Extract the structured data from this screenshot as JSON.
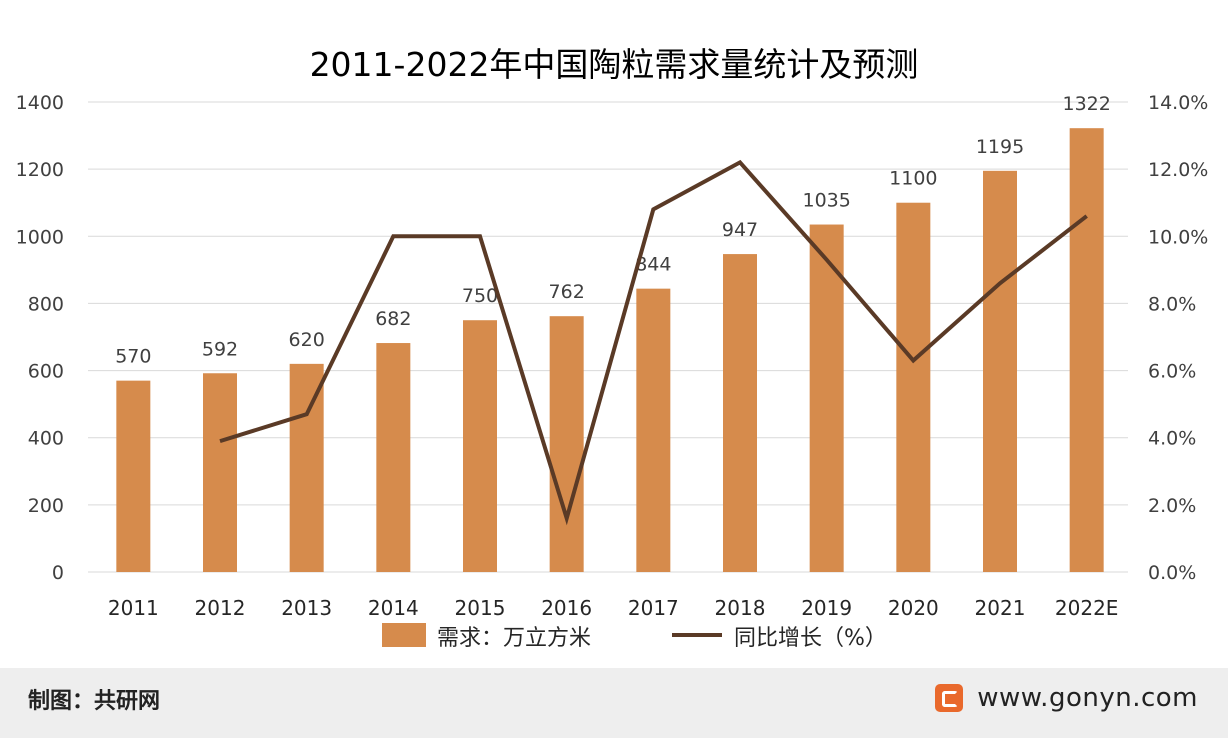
{
  "chart_data": {
    "type": "bar+line",
    "title": "2011-2022年中国陶粒需求量统计及预测",
    "categories": [
      "2011",
      "2012",
      "2013",
      "2014",
      "2015",
      "2016",
      "2017",
      "2018",
      "2019",
      "2020",
      "2021",
      "2022E"
    ],
    "series": [
      {
        "name": "需求：万立方米",
        "type": "bar",
        "axis": "left",
        "color": "#d68b4c",
        "values": [
          570,
          592,
          620,
          682,
          750,
          762,
          844,
          947,
          1035,
          1100,
          1195,
          1322
        ],
        "labels": [
          "570",
          "592",
          "620",
          "682",
          "750",
          "762",
          "844",
          "947",
          "1035",
          "1100",
          "1195",
          "1322"
        ]
      },
      {
        "name": "同比增长（%）",
        "type": "line",
        "axis": "right",
        "color": "#5a3a26",
        "values": [
          null,
          3.9,
          4.7,
          10.0,
          10.0,
          1.6,
          10.8,
          12.2,
          9.3,
          6.3,
          8.6,
          10.6
        ]
      }
    ],
    "y_left": {
      "min": 0,
      "max": 1400,
      "step": 200,
      "tick_labels": [
        "0",
        "200",
        "400",
        "600",
        "800",
        "1000",
        "1200",
        "1400"
      ]
    },
    "y_right": {
      "min": 0,
      "max": 14,
      "step": 2,
      "tick_labels": [
        "0.0%",
        "2.0%",
        "4.0%",
        "6.0%",
        "8.0%",
        "10.0%",
        "12.0%",
        "14.0%"
      ]
    },
    "grid": true,
    "legend_position": "bottom"
  },
  "footer": {
    "source_label": "制图：共研网",
    "brand_url": "www.gonyn.com"
  },
  "colors": {
    "bar": "#d68b4c",
    "line": "#5a3a26",
    "grid": "#d9d9d9",
    "text": "#404040",
    "footer_bg": "#eeeeee",
    "brand": "#e9692c"
  }
}
